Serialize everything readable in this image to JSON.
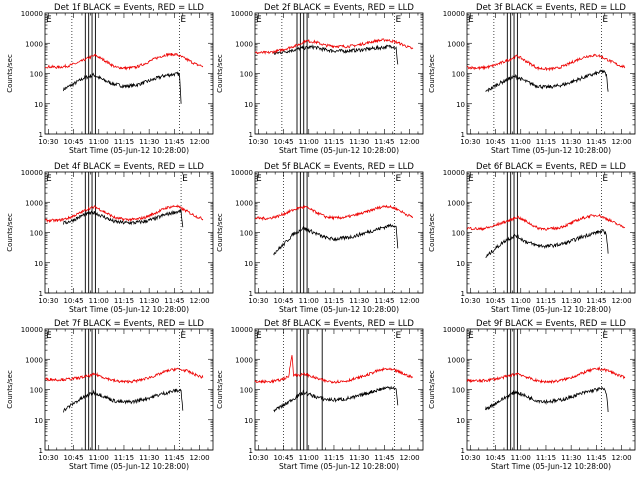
{
  "figure": {
    "ytitle": "Counts/sec",
    "xtitle": "Start Time (05-Jun-12 10:28:00)",
    "x_tick_labels": [
      "10:30",
      "10:45",
      "11:00",
      "11:15",
      "11:30",
      "11:45",
      "12:00"
    ],
    "y_tick_labels": [
      "1",
      "10",
      "100",
      "1000",
      "10000"
    ],
    "colors": {
      "events": "#000000",
      "lld": "#ee0000",
      "axes": "#000000",
      "background": "#ffffff"
    },
    "marker_label": "E"
  },
  "chart_data": [
    {
      "type": "line",
      "title": "Det 1f BLACK = Events, RED = LLD",
      "xlim": [
        "10:28",
        "12:08"
      ],
      "ylim": [
        1,
        10000
      ],
      "yscale": "log",
      "xlabel": "Start Time (05-Jun-12 10:28:00)",
      "ylabel": "Counts/sec",
      "series": [
        {
          "name": "Events",
          "x": [
            "10:39",
            "10:45",
            "10:51",
            "10:57",
            "11:03",
            "11:09",
            "11:15",
            "11:21",
            "11:27",
            "11:33",
            "11:39",
            "11:45",
            "11:48",
            "11:49"
          ],
          "values": [
            30,
            45,
            70,
            90,
            60,
            45,
            38,
            40,
            50,
            65,
            85,
            95,
            95,
            10
          ]
        },
        {
          "name": "LLD",
          "x": [
            "10:28",
            "10:36",
            "10:42",
            "10:48",
            "10:54",
            "10:58",
            "11:04",
            "11:10",
            "11:16",
            "11:22",
            "11:28",
            "11:34",
            "11:40",
            "11:46",
            "11:52",
            "11:58",
            "12:02"
          ],
          "values": [
            170,
            160,
            180,
            230,
            330,
            400,
            260,
            160,
            150,
            160,
            220,
            320,
            420,
            430,
            300,
            200,
            175
          ]
        }
      ],
      "vlines_solid": [
        "10:52",
        "10:54",
        "10:56",
        "10:58"
      ],
      "vlines_dotted": [
        "10:44",
        "11:48"
      ],
      "marker_x": "11:48"
    },
    {
      "type": "line",
      "title": "Det 2f BLACK = Events, RED = LLD",
      "xlim": [
        "10:28",
        "12:08"
      ],
      "ylim": [
        1,
        10000
      ],
      "yscale": "log",
      "xlabel": "Start Time (05-Jun-12 10:28:00)",
      "ylabel": "Counts/sec",
      "series": [
        {
          "name": "Events",
          "x": [
            "10:39",
            "10:45",
            "10:51",
            "10:57",
            "11:03",
            "11:09",
            "11:15",
            "11:21",
            "11:27",
            "11:33",
            "11:39",
            "11:45",
            "11:50",
            "11:52",
            "11:53"
          ],
          "values": [
            450,
            520,
            600,
            700,
            750,
            620,
            560,
            550,
            580,
            620,
            680,
            740,
            800,
            700,
            200
          ]
        },
        {
          "name": "LLD",
          "x": [
            "10:28",
            "10:36",
            "10:42",
            "10:48",
            "10:54",
            "10:58",
            "11:04",
            "11:10",
            "11:16",
            "11:22",
            "11:28",
            "11:34",
            "11:40",
            "11:46",
            "11:52",
            "11:58",
            "12:02"
          ],
          "values": [
            480,
            490,
            560,
            700,
            900,
            1200,
            1100,
            850,
            800,
            780,
            850,
            1000,
            1200,
            1300,
            1100,
            800,
            650
          ]
        }
      ],
      "vlines_solid": [
        "10:53",
        "10:55",
        "10:57",
        "10:59"
      ],
      "vlines_dotted": [
        "10:44",
        "11:51"
      ],
      "marker_x": "11:51"
    },
    {
      "type": "line",
      "title": "Det 3f BLACK = Events, RED = LLD",
      "xlim": [
        "10:28",
        "12:08"
      ],
      "ylim": [
        1,
        10000
      ],
      "yscale": "log",
      "xlabel": "Start Time (05-Jun-12 10:28:00)",
      "ylabel": "Counts/sec",
      "series": [
        {
          "name": "Events",
          "x": [
            "10:39",
            "10:45",
            "10:51",
            "10:57",
            "11:03",
            "11:09",
            "11:15",
            "11:21",
            "11:27",
            "11:33",
            "11:39",
            "11:45",
            "11:49",
            "11:51",
            "11:52"
          ],
          "values": [
            25,
            40,
            60,
            80,
            55,
            40,
            35,
            38,
            45,
            60,
            80,
            100,
            120,
            90,
            25
          ]
        },
        {
          "name": "LLD",
          "x": [
            "10:28",
            "10:36",
            "10:42",
            "10:48",
            "10:54",
            "10:58",
            "11:04",
            "11:10",
            "11:16",
            "11:22",
            "11:28",
            "11:34",
            "11:40",
            "11:46",
            "11:52",
            "11:58",
            "12:02"
          ],
          "values": [
            160,
            150,
            170,
            220,
            300,
            380,
            240,
            150,
            140,
            150,
            200,
            290,
            380,
            400,
            280,
            190,
            165
          ]
        }
      ],
      "vlines_solid": [
        "10:52",
        "10:54",
        "10:56",
        "10:58"
      ],
      "vlines_dotted": [
        "10:44",
        "11:48"
      ],
      "marker_x": "11:48"
    },
    {
      "type": "line",
      "title": "Det 4f BLACK = Events, RED = LLD",
      "xlim": [
        "10:28",
        "12:08"
      ],
      "ylim": [
        1,
        10000
      ],
      "yscale": "log",
      "xlabel": "Start Time (05-Jun-12 10:28:00)",
      "ylabel": "Counts/sec",
      "series": [
        {
          "name": "Events",
          "x": [
            "10:39",
            "10:45",
            "10:51",
            "10:57",
            "11:03",
            "11:09",
            "11:15",
            "11:21",
            "11:27",
            "11:33",
            "11:39",
            "11:45",
            "11:49",
            "11:50"
          ],
          "values": [
            200,
            260,
            380,
            460,
            330,
            230,
            210,
            210,
            230,
            280,
            380,
            470,
            500,
            150
          ]
        },
        {
          "name": "LLD",
          "x": [
            "10:28",
            "10:36",
            "10:42",
            "10:48",
            "10:54",
            "10:58",
            "11:04",
            "11:10",
            "11:16",
            "11:22",
            "11:28",
            "11:34",
            "11:40",
            "11:46",
            "11:52",
            "11:58",
            "12:02"
          ],
          "values": [
            250,
            250,
            300,
            420,
            620,
            700,
            460,
            300,
            270,
            270,
            320,
            450,
            650,
            760,
            520,
            340,
            280
          ]
        }
      ],
      "vlines_solid": [
        "10:52",
        "10:54",
        "10:56",
        "10:58"
      ],
      "vlines_dotted": [
        "10:44",
        "11:49"
      ],
      "marker_x": "11:49"
    },
    {
      "type": "line",
      "title": "Det 5f BLACK = Events, RED = LLD",
      "xlim": [
        "10:28",
        "12:08"
      ],
      "ylim": [
        1,
        10000
      ],
      "yscale": "log",
      "xlabel": "Start Time (05-Jun-12 10:28:00)",
      "ylabel": "Counts/sec",
      "series": [
        {
          "name": "Events",
          "x": [
            "10:39",
            "10:45",
            "10:51",
            "10:57",
            "11:03",
            "11:09",
            "11:15",
            "11:21",
            "11:27",
            "11:33",
            "11:39",
            "11:45",
            "11:50",
            "11:52",
            "11:53"
          ],
          "values": [
            20,
            40,
            90,
            140,
            100,
            70,
            60,
            65,
            75,
            95,
            120,
            150,
            180,
            150,
            30
          ]
        },
        {
          "name": "LLD",
          "x": [
            "10:28",
            "10:36",
            "10:42",
            "10:48",
            "10:54",
            "10:58",
            "11:04",
            "11:10",
            "11:16",
            "11:22",
            "11:28",
            "11:34",
            "11:40",
            "11:46",
            "11:52",
            "11:58",
            "12:02"
          ],
          "values": [
            300,
            290,
            350,
            480,
            650,
            700,
            480,
            330,
            300,
            320,
            380,
            470,
            620,
            760,
            620,
            400,
            320
          ]
        }
      ],
      "vlines_solid": [
        "10:53",
        "10:55",
        "10:57",
        "10:59"
      ],
      "vlines_dotted": [
        "10:45",
        "11:51"
      ],
      "marker_x": "11:51"
    },
    {
      "type": "line",
      "title": "Det 6f BLACK = Events, RED = LLD",
      "xlim": [
        "10:28",
        "12:08"
      ],
      "ylim": [
        1,
        10000
      ],
      "yscale": "log",
      "xlabel": "Start Time (05-Jun-12 10:28:00)",
      "ylabel": "Counts/sec",
      "series": [
        {
          "name": "Events",
          "x": [
            "10:39",
            "10:45",
            "10:51",
            "10:57",
            "11:03",
            "11:09",
            "11:15",
            "11:21",
            "11:27",
            "11:33",
            "11:39",
            "11:45",
            "11:49",
            "11:51",
            "11:52"
          ],
          "values": [
            15,
            30,
            55,
            80,
            50,
            38,
            35,
            38,
            45,
            60,
            80,
            100,
            110,
            90,
            20
          ]
        },
        {
          "name": "LLD",
          "x": [
            "10:28",
            "10:36",
            "10:42",
            "10:48",
            "10:54",
            "10:58",
            "11:04",
            "11:10",
            "11:16",
            "11:22",
            "11:28",
            "11:34",
            "11:40",
            "11:46",
            "11:52",
            "11:58",
            "12:02"
          ],
          "values": [
            140,
            130,
            150,
            200,
            260,
            330,
            220,
            140,
            130,
            140,
            180,
            260,
            340,
            380,
            270,
            180,
            150
          ]
        }
      ],
      "vlines_solid": [
        "10:52",
        "10:54",
        "10:56",
        "10:58"
      ],
      "vlines_dotted": [
        "10:44",
        "11:48"
      ],
      "marker_x": "11:48"
    },
    {
      "type": "line",
      "title": "Det 7f BLACK = Events, RED = LLD",
      "xlim": [
        "10:28",
        "12:08"
      ],
      "ylim": [
        1,
        10000
      ],
      "yscale": "log",
      "xlabel": "Start Time (05-Jun-12 10:28:00)",
      "ylabel": "Counts/sec",
      "series": [
        {
          "name": "Events",
          "x": [
            "10:39",
            "10:45",
            "10:51",
            "10:57",
            "11:03",
            "11:09",
            "11:15",
            "11:21",
            "11:27",
            "11:33",
            "11:39",
            "11:45",
            "11:49",
            "11:50"
          ],
          "values": [
            20,
            35,
            55,
            80,
            60,
            42,
            38,
            40,
            48,
            60,
            75,
            90,
            95,
            20
          ]
        },
        {
          "name": "LLD",
          "x": [
            "10:28",
            "10:36",
            "10:42",
            "10:48",
            "10:54",
            "10:58",
            "11:04",
            "11:10",
            "11:16",
            "11:22",
            "11:28",
            "11:34",
            "11:40",
            "11:46",
            "11:52",
            "11:58",
            "12:02"
          ],
          "values": [
            220,
            210,
            220,
            240,
            280,
            320,
            240,
            190,
            180,
            190,
            230,
            290,
            400,
            480,
            420,
            300,
            250
          ]
        }
      ],
      "vlines_solid": [
        "10:52",
        "10:54",
        "10:56",
        "10:58"
      ],
      "vlines_dotted": [
        "10:44",
        "11:48"
      ],
      "marker_x": "11:48"
    },
    {
      "type": "line",
      "title": "Det 8f BLACK = Events, RED = LLD",
      "xlim": [
        "10:28",
        "12:08"
      ],
      "ylim": [
        1,
        10000
      ],
      "yscale": "log",
      "xlabel": "Start Time (05-Jun-12 10:28:00)",
      "ylabel": "Counts/sec",
      "series": [
        {
          "name": "Events",
          "x": [
            "10:39",
            "10:45",
            "10:51",
            "10:57",
            "11:03",
            "11:09",
            "11:15",
            "11:21",
            "11:27",
            "11:33",
            "11:39",
            "11:45",
            "11:50",
            "11:52",
            "11:53"
          ],
          "values": [
            20,
            30,
            50,
            80,
            60,
            48,
            45,
            48,
            55,
            70,
            90,
            110,
            120,
            100,
            30
          ]
        },
        {
          "name": "LLD",
          "x": [
            "10:28",
            "10:36",
            "10:42",
            "10:48",
            "10:50",
            "10:51",
            "10:54",
            "10:58",
            "11:04",
            "11:10",
            "11:16",
            "11:22",
            "11:28",
            "11:34",
            "11:40",
            "11:46",
            "11:52",
            "11:58",
            "12:02"
          ],
          "values": [
            180,
            180,
            200,
            260,
            1500,
            300,
            300,
            320,
            240,
            190,
            180,
            190,
            230,
            290,
            400,
            480,
            420,
            300,
            250
          ]
        }
      ],
      "vlines_solid": [
        "10:53",
        "10:55",
        "10:57",
        "10:59",
        "11:08"
      ],
      "vlines_dotted": [
        "10:45",
        "11:51"
      ],
      "marker_x": "11:51"
    },
    {
      "type": "line",
      "title": "Det 9f BLACK = Events, RED = LLD",
      "xlim": [
        "10:28",
        "12:08"
      ],
      "ylim": [
        1,
        10000
      ],
      "yscale": "log",
      "xlabel": "Start Time (05-Jun-12 10:28:00)",
      "ylabel": "Counts/sec",
      "series": [
        {
          "name": "Events",
          "x": [
            "10:39",
            "10:45",
            "10:51",
            "10:57",
            "11:03",
            "11:09",
            "11:15",
            "11:21",
            "11:27",
            "11:33",
            "11:39",
            "11:45",
            "11:49",
            "11:51",
            "11:52"
          ],
          "values": [
            22,
            35,
            55,
            85,
            60,
            44,
            40,
            42,
            50,
            65,
            82,
            100,
            105,
            80,
            18
          ]
        },
        {
          "name": "LLD",
          "x": [
            "10:28",
            "10:36",
            "10:42",
            "10:48",
            "10:54",
            "10:58",
            "11:04",
            "11:10",
            "11:16",
            "11:22",
            "11:28",
            "11:34",
            "11:40",
            "11:46",
            "11:52",
            "11:58",
            "12:02"
          ],
          "values": [
            200,
            190,
            210,
            240,
            290,
            340,
            250,
            190,
            180,
            190,
            230,
            300,
            410,
            490,
            420,
            300,
            240
          ]
        }
      ],
      "vlines_solid": [
        "10:52",
        "10:54",
        "10:56",
        "10:58"
      ],
      "vlines_dotted": [
        "10:44",
        "11:48"
      ],
      "marker_x": "11:48"
    }
  ]
}
